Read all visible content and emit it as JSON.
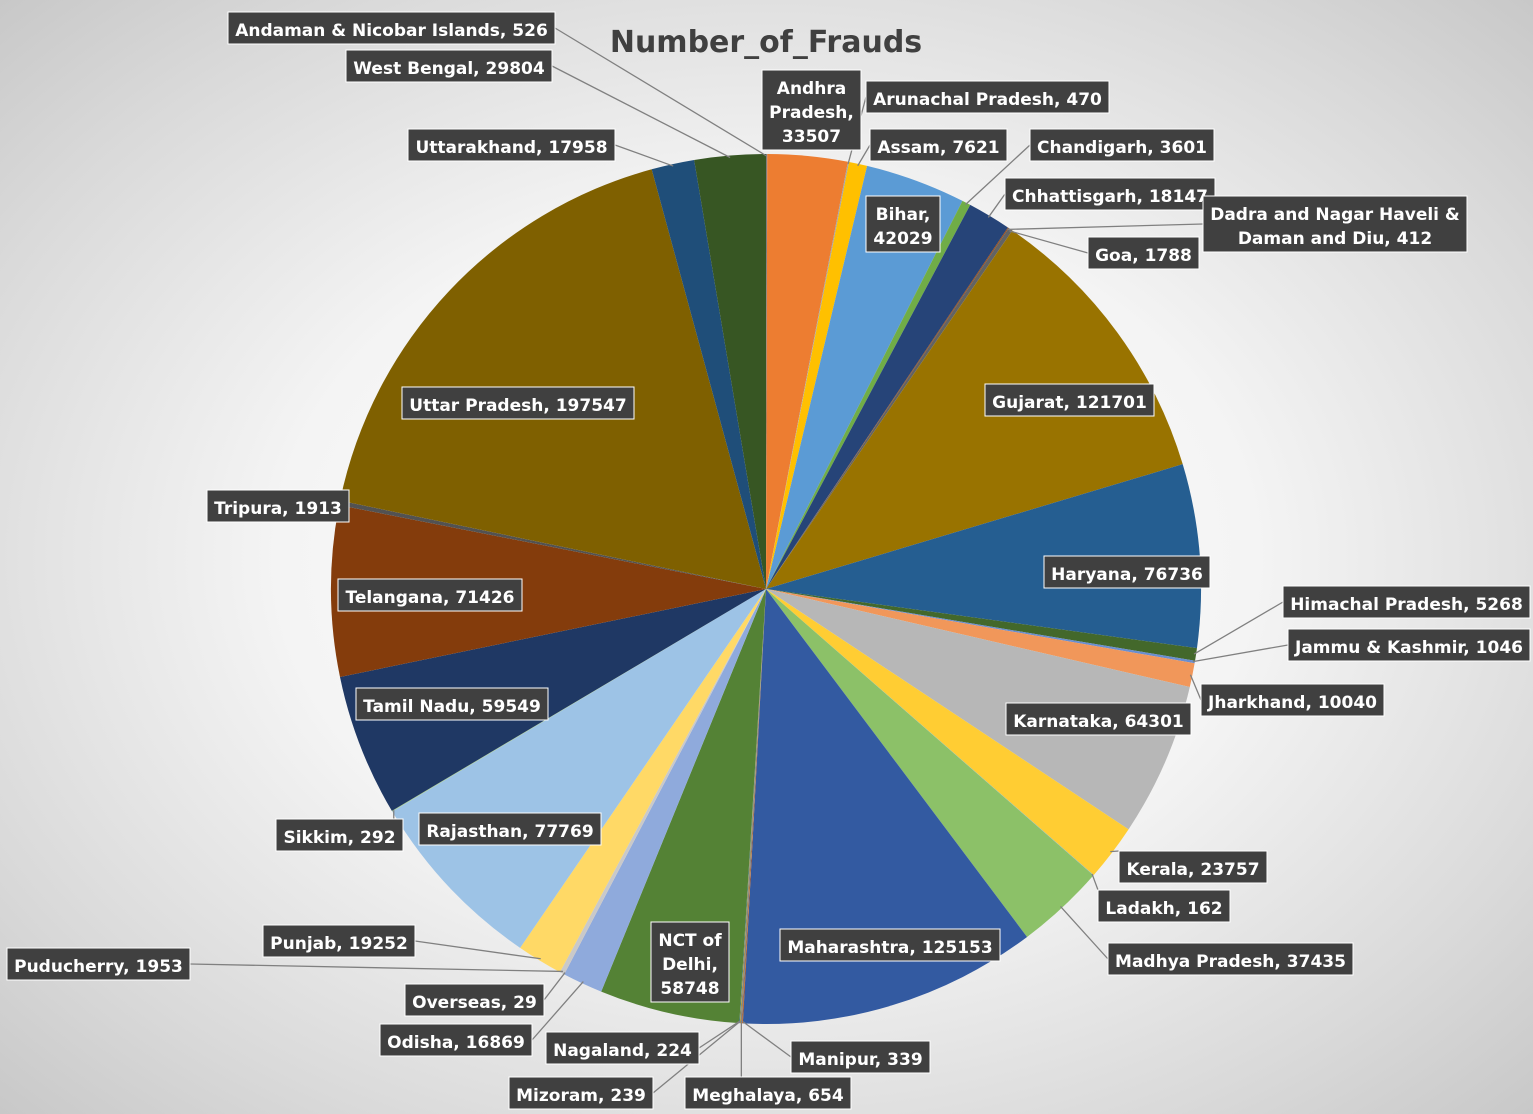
{
  "chart_data": {
    "type": "pie",
    "title": "Number_of_Frauds",
    "legend": "none",
    "data_labels": "category, value",
    "slices": [
      {
        "category": "Andaman & Nicobar Islands",
        "value": 526,
        "label": "Andaman & Nicobar Islands, 526",
        "color": "#7f7f7f"
      },
      {
        "category": "Andhra Pradesh",
        "value": 33507,
        "label": "Andhra Pradesh, 33507",
        "color": "#ed7d31"
      },
      {
        "category": "Arunachal Pradesh",
        "value": 470,
        "label": "Arunachal Pradesh, 470",
        "color": "#a5a5a5"
      },
      {
        "category": "Assam",
        "value": 7621,
        "label": "Assam, 7621",
        "color": "#ffc000"
      },
      {
        "category": "Bihar",
        "value": 42029,
        "label": "Bihar, 42029",
        "color": "#5b9bd5"
      },
      {
        "category": "Chandigarh",
        "value": 3601,
        "label": "Chandigarh, 3601",
        "color": "#70ad47"
      },
      {
        "category": "Chhattisgarh",
        "value": 18147,
        "label": "Chhattisgarh, 18147",
        "color": "#264478"
      },
      {
        "category": "Dadra and Nagar Haveli & Daman and Diu",
        "value": 412,
        "label": "Dadra and Nagar Haveli & Daman and Diu, 412",
        "color": "#9e480e"
      },
      {
        "category": "Goa",
        "value": 1788,
        "label": "Goa, 1788",
        "color": "#636363"
      },
      {
        "category": "Gujarat",
        "value": 121701,
        "label": "Gujarat, 121701",
        "color": "#997300"
      },
      {
        "category": "Haryana",
        "value": 76736,
        "label": "Haryana, 76736",
        "color": "#255e91"
      },
      {
        "category": "Himachal Pradesh",
        "value": 5268,
        "label": "Himachal Pradesh, 5268",
        "color": "#43682b"
      },
      {
        "category": "Jammu & Kashmir",
        "value": 1046,
        "label": "Jammu & Kashmir, 1046",
        "color": "#698ed0"
      },
      {
        "category": "Jharkhand",
        "value": 10040,
        "label": "Jharkhand, 10040",
        "color": "#f1975a"
      },
      {
        "category": "Karnataka",
        "value": 64301,
        "label": "Karnataka, 64301",
        "color": "#b7b7b7"
      },
      {
        "category": "Kerala",
        "value": 23757,
        "label": "Kerala, 23757",
        "color": "#ffcd33"
      },
      {
        "category": "Ladakh",
        "value": 162,
        "label": "Ladakh, 162",
        "color": "#7cafdd"
      },
      {
        "category": "Madhya Pradesh",
        "value": 37435,
        "label": "Madhya Pradesh, 37435",
        "color": "#8cc168"
      },
      {
        "category": "Maharashtra",
        "value": 125153,
        "label": "Maharashtra, 125153",
        "color": "#335aa1"
      },
      {
        "category": "Manipur",
        "value": 339,
        "label": "Manipur, 339",
        "color": "#c55a11"
      },
      {
        "category": "Meghalaya",
        "value": 654,
        "label": "Meghalaya, 654",
        "color": "#848484"
      },
      {
        "category": "Mizoram",
        "value": 239,
        "label": "Mizoram, 239",
        "color": "#cc9a00"
      },
      {
        "category": "Nagaland",
        "value": 224,
        "label": "Nagaland, 224",
        "color": "#3a75ad"
      },
      {
        "category": "NCT of Delhi",
        "value": 58748,
        "label": "NCT of Delhi, 58748",
        "color": "#548235"
      },
      {
        "category": "Odisha",
        "value": 16869,
        "label": "Odisha, 16869",
        "color": "#8faadc"
      },
      {
        "category": "Overseas",
        "value": 29,
        "label": "Overseas, 29",
        "color": "#f4b183"
      },
      {
        "category": "Puducherry",
        "value": 1953,
        "label": "Puducherry, 1953",
        "color": "#c9c9c9"
      },
      {
        "category": "Punjab",
        "value": 19252,
        "label": "Punjab, 19252",
        "color": "#ffd966"
      },
      {
        "category": "Rajasthan",
        "value": 77769,
        "label": "Rajasthan, 77769",
        "color": "#9dc3e6"
      },
      {
        "category": "Sikkim",
        "value": 292,
        "label": "Sikkim, 292",
        "color": "#a9d18e"
      },
      {
        "category": "Tamil Nadu",
        "value": 59549,
        "label": "Tamil Nadu, 59549",
        "color": "#1f3864"
      },
      {
        "category": "Telangana",
        "value": 71426,
        "label": "Telangana, 71426",
        "color": "#843c0c"
      },
      {
        "category": "Tripura",
        "value": 1913,
        "label": "Tripura, 1913",
        "color": "#525252"
      },
      {
        "category": "Uttar Pradesh",
        "value": 197547,
        "label": "Uttar Pradesh, 197547",
        "color": "#7f6000"
      },
      {
        "category": "Uttarakhand",
        "value": 17958,
        "label": "Uttarakhand, 17958",
        "color": "#1f4e79"
      },
      {
        "category": "West Bengal",
        "value": 29804,
        "label": "West Bengal, 29804",
        "color": "#375623"
      }
    ]
  }
}
